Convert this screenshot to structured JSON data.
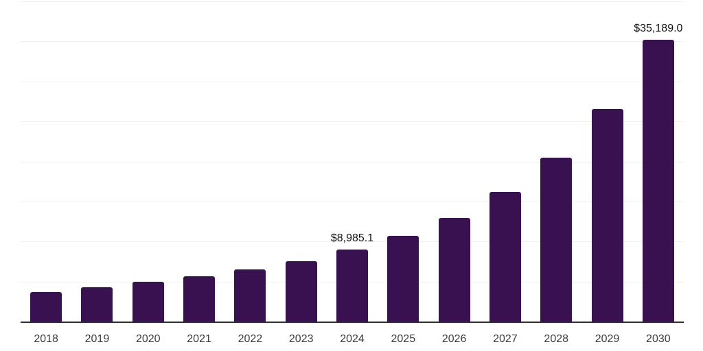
{
  "chart_data": {
    "type": "bar",
    "title": "",
    "xlabel": "",
    "ylabel": "",
    "categories": [
      "2018",
      "2019",
      "2020",
      "2021",
      "2022",
      "2023",
      "2024",
      "2025",
      "2026",
      "2027",
      "2028",
      "2029",
      "2030"
    ],
    "values": [
      3700,
      4270,
      5000,
      5690,
      6550,
      7580,
      8985.1,
      10700,
      12950,
      16200,
      20470,
      26530,
      35189.0
    ],
    "value_labels": [
      null,
      null,
      null,
      null,
      null,
      null,
      "$8,985.1",
      null,
      null,
      null,
      null,
      null,
      "$35,189.0"
    ],
    "ylim": [
      0,
      40000
    ],
    "grid_interval": 5000,
    "grid": true,
    "legend_position": "none",
    "colors": {
      "bar": "#3a1150",
      "grid_line": "#f0f0f0",
      "axis_line": "#2e2e2e",
      "tick_label": "#3d3d3d",
      "value_label": "#101010",
      "background": "#ffffff"
    }
  }
}
